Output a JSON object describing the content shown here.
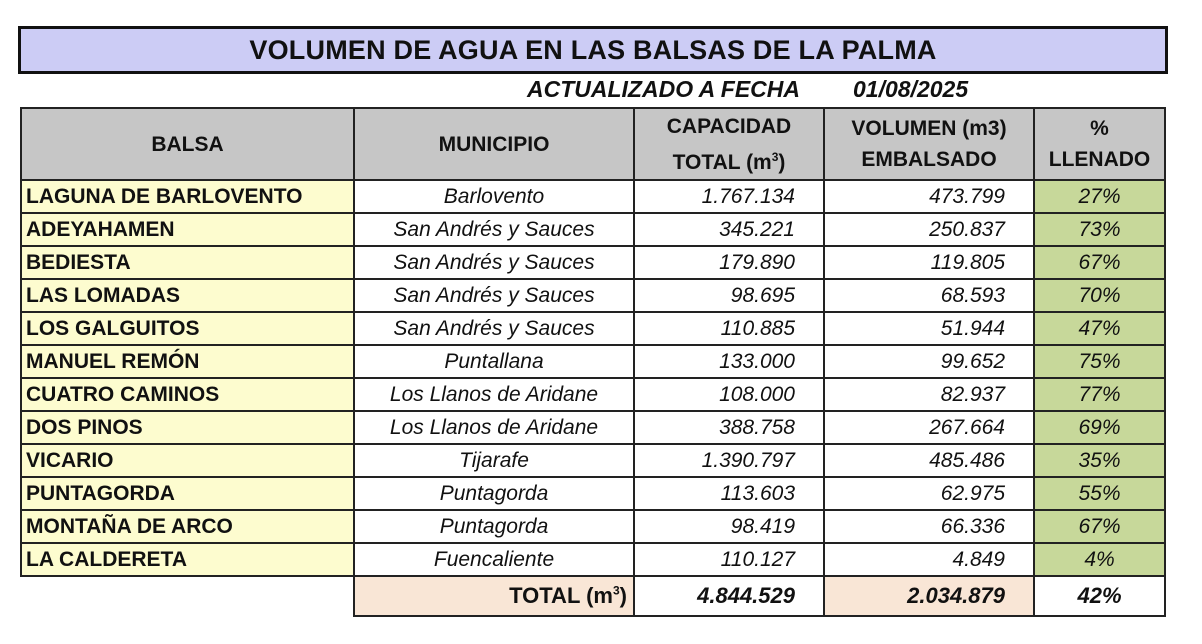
{
  "title": "VOLUMEN DE AGUA EN LAS BALSAS DE LA PALMA",
  "update": {
    "label": "ACTUALIZADO A FECHA",
    "date": "01/08/2025"
  },
  "headers": {
    "balsa": "BALSA",
    "municipio": "MUNICIPIO",
    "capacidad_line1": "CAPACIDAD",
    "capacidad_line2": "TOTAL  (m",
    "capacidad_sup": "3",
    "capacidad_close": ")",
    "volumen_line1": "VOLUMEN (m3)",
    "volumen_line2": "EMBALSADO",
    "pct_line1": "%",
    "pct_line2": "LLENADO"
  },
  "rows": [
    {
      "balsa": "LAGUNA DE BARLOVENTO",
      "municipio": "Barlovento",
      "capacidad": "1.767.134",
      "volumen": "473.799",
      "llenado": "27%"
    },
    {
      "balsa": "ADEYAHAMEN",
      "municipio": "San Andrés y Sauces",
      "capacidad": "345.221",
      "volumen": "250.837",
      "llenado": "73%"
    },
    {
      "balsa": "BEDIESTA",
      "municipio": "San Andrés y Sauces",
      "capacidad": "179.890",
      "volumen": "119.805",
      "llenado": "67%"
    },
    {
      "balsa": "LAS LOMADAS",
      "municipio": "San Andrés y Sauces",
      "capacidad": "98.695",
      "volumen": "68.593",
      "llenado": "70%"
    },
    {
      "balsa": "LOS GALGUITOS",
      "municipio": "San Andrés y Sauces",
      "capacidad": "110.885",
      "volumen": "51.944",
      "llenado": "47%"
    },
    {
      "balsa": "MANUEL REMÓN",
      "municipio": "Puntallana",
      "capacidad": "133.000",
      "volumen": "99.652",
      "llenado": "75%"
    },
    {
      "balsa": "CUATRO CAMINOS",
      "municipio": "Los Llanos de Aridane",
      "capacidad": "108.000",
      "volumen": "82.937",
      "llenado": "77%"
    },
    {
      "balsa": "DOS PINOS",
      "municipio": "Los Llanos de Aridane",
      "capacidad": "388.758",
      "volumen": "267.664",
      "llenado": "69%"
    },
    {
      "balsa": "VICARIO",
      "municipio": "Tijarafe",
      "capacidad": "1.390.797",
      "volumen": "485.486",
      "llenado": "35%"
    },
    {
      "balsa": "PUNTAGORDA",
      "municipio": "Puntagorda",
      "capacidad": "113.603",
      "volumen": "62.975",
      "llenado": "55%"
    },
    {
      "balsa": "MONTAÑA DE ARCO",
      "municipio": "Puntagorda",
      "capacidad": "98.419",
      "volumen": "66.336",
      "llenado": "67%"
    },
    {
      "balsa": "LA CALDERETA",
      "municipio": "Fuencaliente",
      "capacidad": "110.127",
      "volumen": "4.849",
      "llenado": "4%"
    }
  ],
  "total": {
    "label": "TOTAL (m",
    "label_sup": "3",
    "label_close": ")",
    "capacidad": "4.844.529",
    "volumen": "2.034.879",
    "llenado": "42%"
  },
  "colors": {
    "title_bg": "#ccccf5",
    "header_bg": "#c6c6c6",
    "balsa_bg": "#fdfccf",
    "pct_bg": "#c7d89a",
    "total_bg": "#f9e6d6"
  }
}
